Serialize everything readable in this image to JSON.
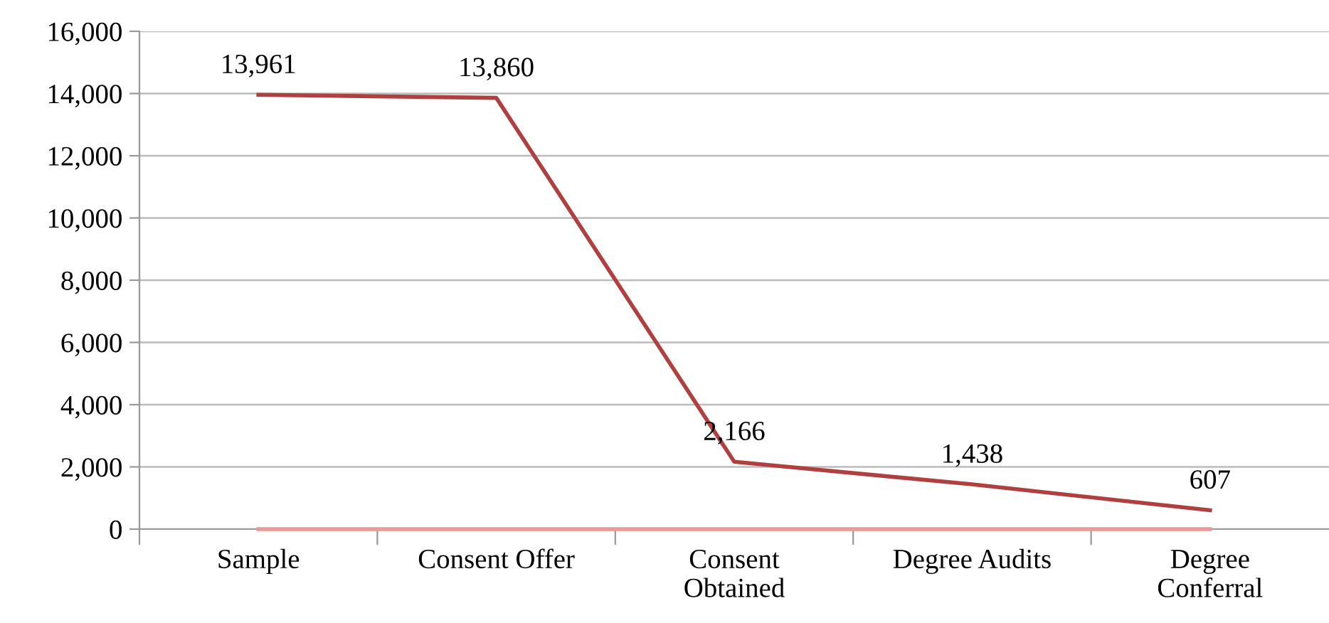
{
  "chart_data": {
    "type": "line",
    "categories": [
      "Sample",
      "Consent Offer",
      "Consent\nObtained",
      "Degree Audits",
      "Degree\nConferral"
    ],
    "series": [
      {
        "color": "#b04040",
        "values": [
          13961,
          13860,
          2166,
          1438,
          607
        ],
        "value_labels": [
          "13,961",
          "13,860",
          "2,166",
          "1,438",
          "607"
        ]
      },
      {
        "color": "#e89a9a",
        "values": [
          0,
          0,
          0,
          0,
          0
        ]
      }
    ],
    "ylim": [
      0,
      16000
    ],
    "yticks": [
      {
        "value": 0,
        "label": "0"
      },
      {
        "value": 2000,
        "label": "2,000"
      },
      {
        "value": 4000,
        "label": "4,000"
      },
      {
        "value": 6000,
        "label": "6,000"
      },
      {
        "value": 8000,
        "label": "8,000"
      },
      {
        "value": 10000,
        "label": "10,000"
      },
      {
        "value": 12000,
        "label": "12,000"
      },
      {
        "value": 14000,
        "label": "14,000"
      },
      {
        "value": 16000,
        "label": "16,000"
      }
    ],
    "grid": "y",
    "marker": "none",
    "line_style": "solid",
    "legend": false
  }
}
